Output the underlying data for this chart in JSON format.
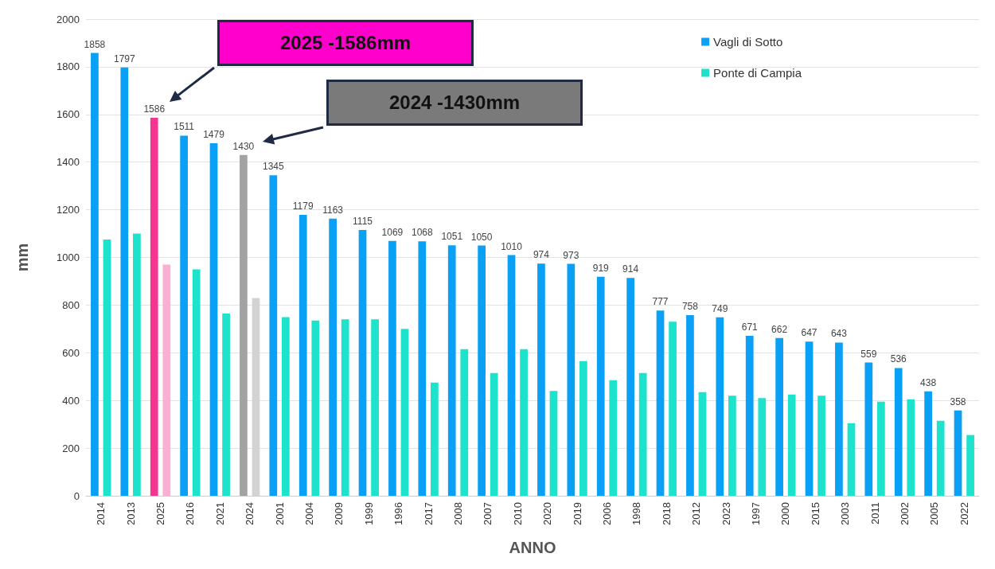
{
  "chart_data": {
    "type": "bar",
    "xlabel": "ANNO",
    "ylabel": "mm",
    "categories": [
      "2014",
      "2013",
      "2025",
      "2016",
      "2021",
      "2024",
      "2001",
      "2004",
      "2009",
      "1999",
      "1996",
      "2017",
      "2008",
      "2007",
      "2010",
      "2020",
      "2019",
      "2006",
      "1998",
      "2018",
      "2012",
      "2023",
      "1997",
      "2000",
      "2015",
      "2003",
      "2011",
      "2002",
      "2005",
      "2022"
    ],
    "series": [
      {
        "name": "Vagli di Sotto",
        "color": "#0aa0f5",
        "colors": [
          "#0aa0f5",
          "#0aa0f5",
          "#f5358f",
          "#0aa0f5",
          "#0aa0f5",
          "#a3a3a3",
          "#0aa0f5",
          "#0aa0f5",
          "#0aa0f5",
          "#0aa0f5",
          "#0aa0f5",
          "#0aa0f5",
          "#0aa0f5",
          "#0aa0f5",
          "#0aa0f5",
          "#0aa0f5",
          "#0aa0f5",
          "#0aa0f5",
          "#0aa0f5",
          "#0aa0f5",
          "#0aa0f5",
          "#0aa0f5",
          "#0aa0f5",
          "#0aa0f5",
          "#0aa0f5",
          "#0aa0f5",
          "#0aa0f5",
          "#0aa0f5",
          "#0aa0f5",
          "#0aa0f5"
        ],
        "values": [
          1858,
          1797,
          1586,
          1511,
          1479,
          1430,
          1345,
          1179,
          1163,
          1115,
          1069,
          1068,
          1051,
          1050,
          1010,
          974,
          973,
          919,
          914,
          777,
          758,
          749,
          671,
          662,
          647,
          643,
          559,
          536,
          438,
          358
        ],
        "value_labels": [
          "1858",
          "1797",
          "1586",
          "1511",
          "1479",
          "1430",
          "1345",
          "1179",
          "1163",
          "1115",
          "1069",
          "1068",
          "1051",
          "1050",
          "1010",
          "974",
          "973",
          "919",
          "914",
          "777",
          "758",
          "749",
          "671",
          "662",
          "647",
          "643",
          "559",
          "536",
          "438",
          "358"
        ]
      },
      {
        "name": "Ponte di Campia",
        "color": "#1de3cc",
        "colors": [
          "#1de3cc",
          "#1de3cc",
          "#f9b0d3",
          "#1de3cc",
          "#1de3cc",
          "#d3d3d3",
          "#1de3cc",
          "#1de3cc",
          "#1de3cc",
          "#1de3cc",
          "#1de3cc",
          "#1de3cc",
          "#1de3cc",
          "#1de3cc",
          "#1de3cc",
          "#1de3cc",
          "#1de3cc",
          "#1de3cc",
          "#1de3cc",
          "#1de3cc",
          "#1de3cc",
          "#1de3cc",
          "#1de3cc",
          "#1de3cc",
          "#1de3cc",
          "#1de3cc",
          "#1de3cc",
          "#1de3cc",
          "#1de3cc",
          "#1de3cc"
        ],
        "values": [
          1075,
          1100,
          970,
          950,
          765,
          830,
          750,
          735,
          740,
          740,
          700,
          475,
          615,
          515,
          615,
          440,
          565,
          485,
          515,
          730,
          435,
          420,
          410,
          425,
          420,
          305,
          395,
          405,
          315,
          255
        ]
      }
    ],
    "ylim": [
      0,
      2000
    ],
    "yticks": [
      0,
      200,
      400,
      600,
      800,
      1000,
      1200,
      1400,
      1600,
      1800,
      2000
    ],
    "grid": "y",
    "legend": "top right",
    "annotations": [
      "2025 -1586mm",
      "2024 -1430mm"
    ]
  }
}
